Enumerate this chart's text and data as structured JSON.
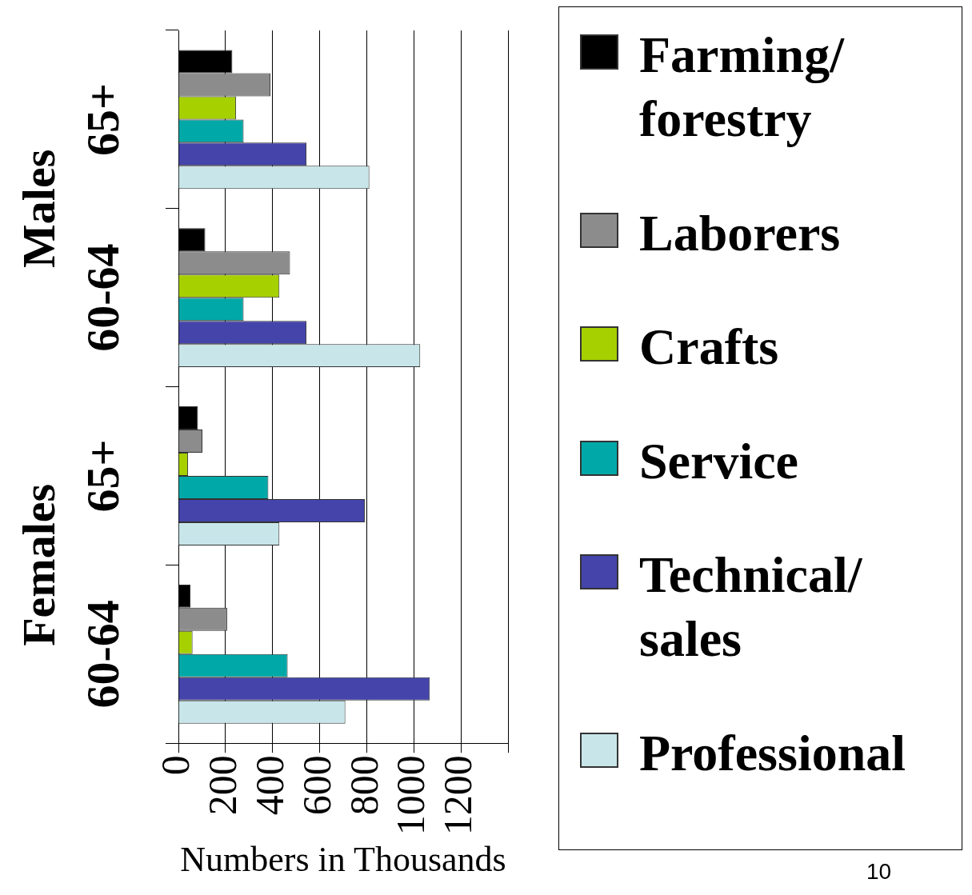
{
  "chart_data": {
    "type": "bar",
    "orientation": "horizontal",
    "xlabel": "Numbers in Thousands",
    "categories": [
      "65+",
      "60-64",
      "65+",
      "60-64"
    ],
    "series": [
      {
        "name": "Farming/ forestry",
        "color": "#000000",
        "values": [
          229,
          114,
          83,
          51
        ]
      },
      {
        "name": "Laborers",
        "color": "#8c8c8c",
        "values": [
          391,
          474,
          102,
          207
        ]
      },
      {
        "name": "Crafts",
        "color": "#a6d000",
        "values": [
          245,
          429,
          41,
          60
        ]
      },
      {
        "name": "Service",
        "color": "#00a8a8",
        "values": [
          277,
          277,
          382,
          464
        ]
      },
      {
        "name": "Technical/ sales",
        "color": "#4444aa",
        "values": [
          544,
          544,
          792,
          1068
        ]
      },
      {
        "name": "Professional",
        "color": "#c8e6ea",
        "values": [
          811,
          1027,
          429,
          709
        ]
      }
    ],
    "xlim": [
      0,
      1400
    ],
    "xticks": [
      0,
      200,
      400,
      600,
      800,
      1000,
      1200,
      {
        "value": 1400,
        "label": null
      }
    ],
    "grid": "x",
    "legend": "right",
    "annotations": [
      "Males",
      "Females",
      "10"
    ]
  }
}
